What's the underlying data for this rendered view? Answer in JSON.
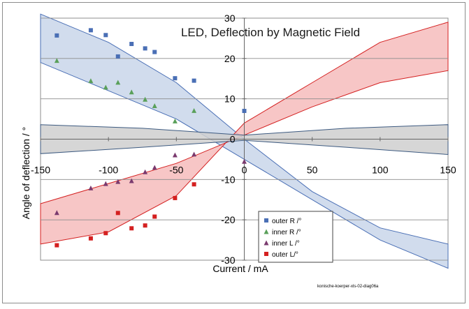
{
  "chart_data": {
    "type": "scatter",
    "title": "LED, Deflection by Magnetic Field",
    "xlabel": "Current / mA",
    "ylabel": "Angle of deflection / °",
    "xlim": [
      -150,
      150
    ],
    "ylim": [
      -30,
      30
    ],
    "x_ticks": [
      -150,
      -100,
      -50,
      0,
      50,
      100,
      150
    ],
    "y_ticks": [
      -30,
      -20,
      -10,
      0,
      10,
      20,
      30
    ],
    "grid": "horizontal",
    "legend_position": "bottom-right",
    "credit": "konische-koerper-xls-02-diag06a",
    "series": [
      {
        "name": "outer R /°",
        "color": "#4a6fb5",
        "marker": "square",
        "points": [
          [
            -138,
            25.7
          ],
          [
            -113,
            27
          ],
          [
            -102,
            25.8
          ],
          [
            -93,
            20.5
          ],
          [
            -83,
            23.6
          ],
          [
            -73,
            22.5
          ],
          [
            -66,
            21.6
          ],
          [
            -51,
            15.1
          ],
          [
            -37,
            14.5
          ],
          [
            0,
            7
          ]
        ]
      },
      {
        "name": "inner R /°",
        "color": "#5aa05a",
        "marker": "triangle",
        "points": [
          [
            -138,
            19.5
          ],
          [
            -113,
            14.5
          ],
          [
            -102,
            12.9
          ],
          [
            -93,
            14.1
          ],
          [
            -83,
            11.7
          ],
          [
            -73,
            9.9
          ],
          [
            -66,
            8.3
          ],
          [
            -51,
            4.5
          ],
          [
            -37,
            7.1
          ]
        ]
      },
      {
        "name": "inner L /°",
        "color": "#7a3a6e",
        "marker": "triangle",
        "points": [
          [
            -138,
            -18.2
          ],
          [
            -113,
            -12.1
          ],
          [
            -102,
            -11
          ],
          [
            -93,
            -10.5
          ],
          [
            -83,
            -10.3
          ],
          [
            -73,
            -8.1
          ],
          [
            -66,
            -7
          ],
          [
            -51,
            -3.9
          ],
          [
            -37,
            -3.7
          ],
          [
            0,
            -5.5
          ]
        ]
      },
      {
        "name": "outer L/°",
        "color": "#d42020",
        "marker": "square",
        "points": [
          [
            -138,
            -26.3
          ],
          [
            -113,
            -24.6
          ],
          [
            -102,
            -23.3
          ],
          [
            -93,
            -18.3
          ],
          [
            -83,
            -22.1
          ],
          [
            -73,
            -21.4
          ],
          [
            -66,
            -19.2
          ],
          [
            -51,
            -14.6
          ],
          [
            -37,
            -11.2
          ]
        ]
      }
    ],
    "bands": [
      {
        "color": "#c9d6ea",
        "stroke": "#4a6fb5",
        "upper": [
          [
            -150,
            31
          ],
          [
            -100,
            24
          ],
          [
            -50,
            14
          ],
          [
            0,
            0
          ],
          [
            50,
            -13
          ],
          [
            100,
            -22
          ],
          [
            150,
            -26
          ]
        ],
        "lower": [
          [
            -150,
            19
          ],
          [
            -100,
            12
          ],
          [
            -50,
            5
          ],
          [
            0,
            -5
          ],
          [
            50,
            -15
          ],
          [
            100,
            -25
          ],
          [
            150,
            -32
          ]
        ]
      },
      {
        "color": "#f6bcbc",
        "stroke": "#d42020",
        "upper": [
          [
            -150,
            -16
          ],
          [
            -100,
            -11
          ],
          [
            -50,
            -6
          ],
          [
            0,
            1
          ],
          [
            50,
            8
          ],
          [
            100,
            14
          ],
          [
            150,
            17
          ]
        ],
        "lower": [
          [
            -150,
            -26
          ],
          [
            -100,
            -23
          ],
          [
            -50,
            -14
          ],
          [
            0,
            4
          ],
          [
            50,
            14
          ],
          [
            100,
            24
          ],
          [
            150,
            29
          ]
        ]
      },
      {
        "color": "#cfcfcf",
        "stroke": "#3d5a80",
        "upper": [
          [
            -150,
            3.6
          ],
          [
            -75,
            2.7
          ],
          [
            0,
            1
          ],
          [
            75,
            2.7
          ],
          [
            150,
            3.6
          ]
        ],
        "lower": [
          [
            -150,
            -3.6
          ],
          [
            -75,
            -2
          ],
          [
            0,
            -0.3
          ],
          [
            75,
            -2
          ],
          [
            150,
            -3.8
          ]
        ]
      }
    ]
  }
}
